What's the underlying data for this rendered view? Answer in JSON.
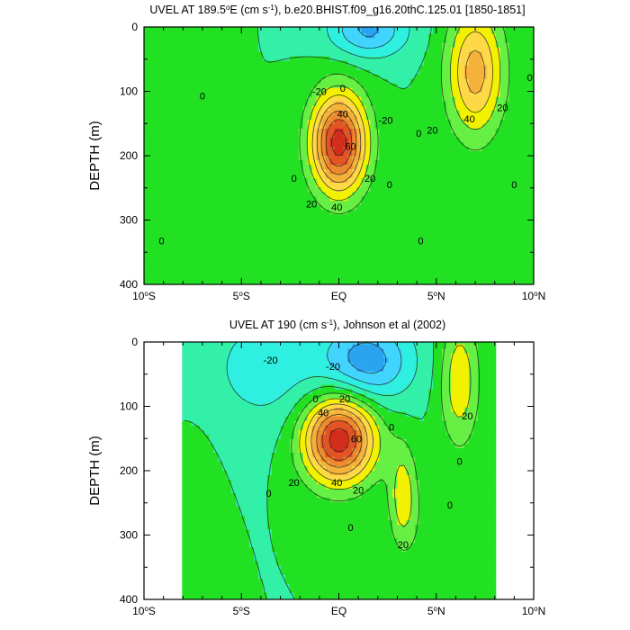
{
  "chart_data": [
    {
      "type": "contour",
      "title_prefix": "UVEL AT 189.5",
      "title_deg_unit": "o",
      "title_after_deg": "E (cm s",
      "title_exp": "-1",
      "title_suffix": "), b.e20.BHIST.f09_g16.20thC.125.01 [1850-1851]",
      "ylabel": "DEPTH (m)",
      "x_ticks": [
        {
          "value": -10,
          "main": "10",
          "sup": "o",
          "hemi": "S"
        },
        {
          "value": -5,
          "main": "5",
          "sup": "o",
          "hemi": "S"
        },
        {
          "value": 0,
          "main": "EQ",
          "sup": "",
          "hemi": ""
        },
        {
          "value": 5,
          "main": "5",
          "sup": "o",
          "hemi": "N"
        },
        {
          "value": 10,
          "main": "10",
          "sup": "o",
          "hemi": "N"
        }
      ],
      "y_ticks": [
        "0",
        "100",
        "200",
        "300",
        "400"
      ],
      "xlim": [
        -10,
        10
      ],
      "ylim": [
        0,
        400
      ],
      "contour_interval": 10,
      "features": [
        {
          "lat": 0.0,
          "depth": 180,
          "amplitude": 75,
          "lat_width": 1.0,
          "depth_width": 55
        },
        {
          "lat": 7.0,
          "depth": 70,
          "amplitude": 45,
          "lat_width": 1.0,
          "depth_width": 70
        },
        {
          "lat": 1.5,
          "depth": 5,
          "amplitude": -32,
          "lat_width": 1.4,
          "depth_width": 30
        },
        {
          "lat": -8.5,
          "depth": 60,
          "amplitude": 8,
          "lat_width": 1.2,
          "depth_width": 80
        },
        {
          "lat": -7.5,
          "depth": 390,
          "amplitude": 6,
          "lat_width": 2.0,
          "depth_width": 60
        }
      ],
      "contour_labels": [
        {
          "lat": -1.0,
          "depth": 100,
          "text": "-20"
        },
        {
          "lat": 0.2,
          "depth": 95,
          "text": "0"
        },
        {
          "lat": 0.2,
          "depth": 135,
          "text": "40"
        },
        {
          "lat": 0.6,
          "depth": 185,
          "text": "60"
        },
        {
          "lat": 1.6,
          "depth": 235,
          "text": "20"
        },
        {
          "lat": -1.4,
          "depth": 275,
          "text": "20"
        },
        {
          "lat": -0.1,
          "depth": 280,
          "text": "40"
        },
        {
          "lat": 2.4,
          "depth": 145,
          "text": "-20"
        },
        {
          "lat": 4.8,
          "depth": 160,
          "text": "20"
        },
        {
          "lat": 6.7,
          "depth": 143,
          "text": "40"
        },
        {
          "lat": 8.4,
          "depth": 125,
          "text": "20"
        },
        {
          "lat": -7.0,
          "depth": 107,
          "text": "0"
        },
        {
          "lat": 4.1,
          "depth": 165,
          "text": "0"
        },
        {
          "lat": 2.6,
          "depth": 245,
          "text": "0"
        },
        {
          "lat": 9.0,
          "depth": 245,
          "text": "0"
        },
        {
          "lat": 4.2,
          "depth": 332,
          "text": "0"
        },
        {
          "lat": -9.1,
          "depth": 332,
          "text": "0"
        },
        {
          "lat": -2.3,
          "depth": 235,
          "text": "0"
        },
        {
          "lat": 9.8,
          "depth": 78,
          "text": "0"
        }
      ]
    },
    {
      "type": "contour",
      "title_prefix": "UVEL AT 190 (cm s",
      "title_deg_unit": "",
      "title_after_deg": "",
      "title_exp": "-1",
      "title_suffix": "), Johnson et al (2002)",
      "ylabel": "DEPTH (m)",
      "x_ticks": [
        {
          "value": -10,
          "main": "10",
          "sup": "o",
          "hemi": "S"
        },
        {
          "value": -5,
          "main": "5",
          "sup": "o",
          "hemi": "S"
        },
        {
          "value": 0,
          "main": "EQ",
          "sup": "",
          "hemi": ""
        },
        {
          "value": 5,
          "main": "5",
          "sup": "o",
          "hemi": "N"
        },
        {
          "value": 10,
          "main": "10",
          "sup": "o",
          "hemi": "N"
        }
      ],
      "y_ticks": [
        "0",
        "100",
        "200",
        "300",
        "400"
      ],
      "xlim": [
        -10,
        10
      ],
      "ylim": [
        0,
        400
      ],
      "contour_interval": 10,
      "data_lat_range": [
        -8,
        8
      ],
      "features": [
        {
          "lat": 0.0,
          "depth": 150,
          "amplitude": 78,
          "lat_width": 1.3,
          "depth_width": 48
        },
        {
          "lat": 6.2,
          "depth": 60,
          "amplitude": 28,
          "lat_width": 0.7,
          "depth_width": 70
        },
        {
          "lat": 3.3,
          "depth": 240,
          "amplitude": 26,
          "lat_width": 0.5,
          "depth_width": 55
        },
        {
          "lat": 1.5,
          "depth": 30,
          "amplitude": -35,
          "lat_width": 1.6,
          "depth_width": 45
        },
        {
          "lat": -3.5,
          "depth": 40,
          "amplitude": -15,
          "lat_width": 2.5,
          "depth_width": 70
        },
        {
          "lat": -7.5,
          "depth": 260,
          "amplitude": 8,
          "lat_width": 0.8,
          "depth_width": 80
        },
        {
          "lat": 5.5,
          "depth": 300,
          "amplitude": 6,
          "lat_width": 1.5,
          "depth_width": 60
        }
      ],
      "contour_labels": [
        {
          "lat": -3.5,
          "depth": 28,
          "text": "-20"
        },
        {
          "lat": -0.3,
          "depth": 38,
          "text": "-20"
        },
        {
          "lat": -1.2,
          "depth": 88,
          "text": "0"
        },
        {
          "lat": 0.3,
          "depth": 88,
          "text": "20"
        },
        {
          "lat": -0.8,
          "depth": 110,
          "text": "40"
        },
        {
          "lat": 0.9,
          "depth": 150,
          "text": "60"
        },
        {
          "lat": 6.6,
          "depth": 115,
          "text": "20"
        },
        {
          "lat": 2.7,
          "depth": 132,
          "text": "0"
        },
        {
          "lat": -2.3,
          "depth": 218,
          "text": "20"
        },
        {
          "lat": -0.1,
          "depth": 218,
          "text": "40"
        },
        {
          "lat": 1.0,
          "depth": 230,
          "text": "20"
        },
        {
          "lat": -3.6,
          "depth": 235,
          "text": "0"
        },
        {
          "lat": 6.2,
          "depth": 185,
          "text": "0"
        },
        {
          "lat": 5.7,
          "depth": 253,
          "text": "0"
        },
        {
          "lat": 0.6,
          "depth": 288,
          "text": "0"
        },
        {
          "lat": 3.3,
          "depth": 315,
          "text": "20"
        }
      ]
    }
  ],
  "colors": {
    "levels": [
      -50,
      -40,
      -30,
      -20,
      -10,
      0,
      10,
      20,
      30,
      40,
      50,
      60,
      70
    ],
    "fills": [
      "#0a2fc4",
      "#1567e6",
      "#2aa3f0",
      "#40d4ff",
      "#2ff0e0",
      "#33f0a8",
      "#22e022",
      "#66f044",
      "#f2f200",
      "#ffd84a",
      "#f5b23a",
      "#ee8a2e",
      "#e35425",
      "#d42d1c"
    ]
  }
}
